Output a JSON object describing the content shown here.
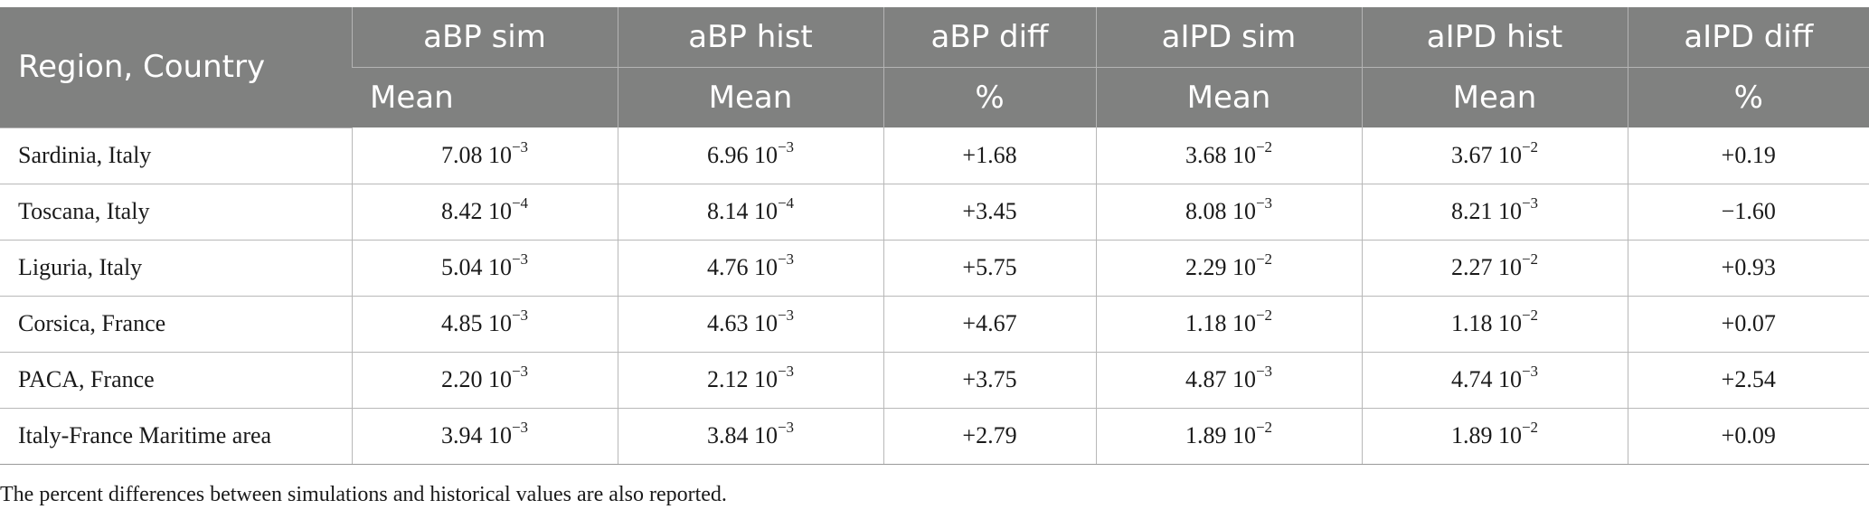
{
  "header": {
    "col0": "Region, Country",
    "cols": [
      {
        "top": "aBP sim",
        "sub": "Mean"
      },
      {
        "top": "aBP hist",
        "sub": "Mean"
      },
      {
        "top": "aBP diff",
        "sub": "%"
      },
      {
        "top": "aIPD sim",
        "sub": "Mean"
      },
      {
        "top": "aIPD hist",
        "sub": "Mean"
      },
      {
        "top": "aIPD diff",
        "sub": "%"
      }
    ]
  },
  "rows": [
    {
      "region": "Sardinia, Italy",
      "cells": [
        {
          "m": "7.08 10",
          "e": "−3"
        },
        {
          "m": "6.96 10",
          "e": "−3"
        },
        {
          "m": "+1.68",
          "e": ""
        },
        {
          "m": "3.68 10",
          "e": "−2"
        },
        {
          "m": "3.67 10",
          "e": "−2"
        },
        {
          "m": "+0.19",
          "e": ""
        }
      ]
    },
    {
      "region": "Toscana, Italy",
      "cells": [
        {
          "m": "8.42 10",
          "e": "−4"
        },
        {
          "m": "8.14 10",
          "e": "−4"
        },
        {
          "m": "+3.45",
          "e": ""
        },
        {
          "m": "8.08 10",
          "e": "−3"
        },
        {
          "m": "8.21 10",
          "e": "−3"
        },
        {
          "m": "−1.60",
          "e": ""
        }
      ]
    },
    {
      "region": "Liguria, Italy",
      "cells": [
        {
          "m": "5.04 10",
          "e": "−3"
        },
        {
          "m": "4.76 10",
          "e": "−3"
        },
        {
          "m": "+5.75",
          "e": ""
        },
        {
          "m": "2.29 10",
          "e": "−2"
        },
        {
          "m": "2.27 10",
          "e": "−2"
        },
        {
          "m": "+0.93",
          "e": ""
        }
      ]
    },
    {
      "region": "Corsica, France",
      "cells": [
        {
          "m": "4.85 10",
          "e": "−3"
        },
        {
          "m": "4.63 10",
          "e": "−3"
        },
        {
          "m": "+4.67",
          "e": ""
        },
        {
          "m": "1.18 10",
          "e": "−2"
        },
        {
          "m": "1.18 10",
          "e": "−2"
        },
        {
          "m": "+0.07",
          "e": ""
        }
      ]
    },
    {
      "region": "PACA, France",
      "cells": [
        {
          "m": "2.20 10",
          "e": "−3"
        },
        {
          "m": "2.12 10",
          "e": "−3"
        },
        {
          "m": "+3.75",
          "e": ""
        },
        {
          "m": "4.87 10",
          "e": "−3"
        },
        {
          "m": "4.74 10",
          "e": "−3"
        },
        {
          "m": "+2.54",
          "e": ""
        }
      ]
    },
    {
      "region": "Italy-France Maritime area",
      "cells": [
        {
          "m": "3.94 10",
          "e": "−3"
        },
        {
          "m": "3.84 10",
          "e": "−3"
        },
        {
          "m": "+2.79",
          "e": ""
        },
        {
          "m": "1.89 10",
          "e": "−2"
        },
        {
          "m": "1.89 10",
          "e": "−2"
        },
        {
          "m": "+0.09",
          "e": ""
        }
      ]
    }
  ],
  "footnote": "The percent differences between simulations and historical values are also reported."
}
